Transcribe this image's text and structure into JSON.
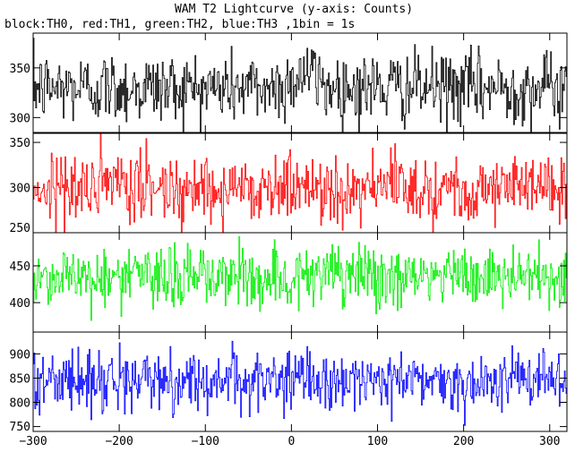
{
  "chart_data": {
    "type": "line",
    "title": "WAM T2 Lightcurve (y-axis: Counts)",
    "subtitle": "block:TH0, red:TH1, green:TH2, blue:TH3 ,1bin = 1s",
    "xlabel": "",
    "ylabel": "",
    "xlim": [
      -300,
      320
    ],
    "x_ticks": [
      -300,
      -200,
      -100,
      0,
      100,
      200,
      300
    ],
    "x_start": -300,
    "x_end": 320,
    "x_step": 1,
    "grid": false,
    "panels": [
      {
        "name": "TH0",
        "color": "#000000",
        "ylim": [
          285,
          385
        ],
        "y_ticks": [
          300,
          350
        ],
        "mean": 330,
        "noise_amplitude": 18,
        "features": [
          {
            "x_center": 15,
            "width": 18,
            "height": 15
          }
        ]
      },
      {
        "name": "TH1",
        "color": "#ff0000",
        "ylim": [
          250,
          360
        ],
        "y_ticks": [
          250,
          300,
          350
        ],
        "mean": 300,
        "noise_amplitude": 19,
        "features": []
      },
      {
        "name": "TH2",
        "color": "#00ee00",
        "ylim": [
          360,
          495
        ],
        "y_ticks": [
          400,
          450
        ],
        "mean": 435,
        "noise_amplitude": 21,
        "features": []
      },
      {
        "name": "TH3",
        "color": "#0000ff",
        "ylim": [
          740,
          945
        ],
        "y_ticks": [
          750,
          800,
          850,
          900
        ],
        "mean": 845,
        "noise_amplitude": 30,
        "features": []
      }
    ]
  }
}
